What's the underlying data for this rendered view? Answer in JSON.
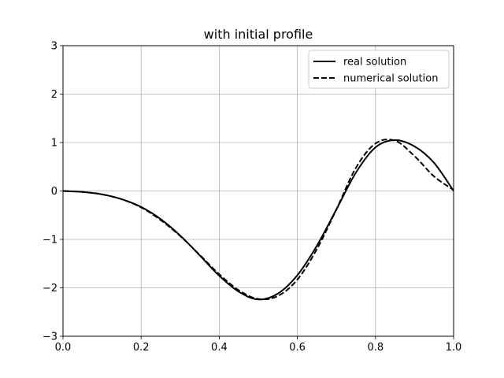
{
  "chart_data": {
    "type": "line",
    "title": "with initial profile",
    "xlabel": "",
    "ylabel": "",
    "xlim": [
      0.0,
      1.0
    ],
    "ylim": [
      -3,
      3
    ],
    "xticks": [
      0.0,
      0.2,
      0.4,
      0.6,
      0.8,
      1.0
    ],
    "xtick_labels": [
      "0.0",
      "0.2",
      "0.4",
      "0.6",
      "0.8",
      "1.0"
    ],
    "yticks": [
      -3,
      -2,
      -1,
      0,
      1,
      2,
      3
    ],
    "ytick_labels": [
      "−3",
      "−2",
      "−1",
      "0",
      "1",
      "2",
      "3"
    ],
    "grid": true,
    "legend_position": "upper right",
    "series": [
      {
        "name": "real solution",
        "style": "solid",
        "color": "#000000",
        "x": [
          0.0,
          0.05,
          0.1,
          0.15,
          0.2,
          0.25,
          0.3,
          0.35,
          0.4,
          0.45,
          0.5,
          0.55,
          0.6,
          0.65,
          0.7,
          0.75,
          0.8,
          0.85,
          0.9,
          0.95,
          1.0
        ],
        "y": [
          0.0,
          -0.02,
          -0.07,
          -0.17,
          -0.33,
          -0.58,
          -0.92,
          -1.33,
          -1.75,
          -2.08,
          -2.24,
          -2.12,
          -1.74,
          -1.13,
          -0.38,
          0.38,
          0.9,
          1.05,
          0.92,
          0.58,
          0.0
        ]
      },
      {
        "name": "numerical solution",
        "style": "dashed",
        "color": "#000000",
        "x": [
          0.0,
          0.05,
          0.1,
          0.15,
          0.2,
          0.25,
          0.3,
          0.35,
          0.4,
          0.45,
          0.5,
          0.55,
          0.6,
          0.65,
          0.7,
          0.75,
          0.8,
          0.85,
          0.9,
          0.95,
          1.0
        ],
        "y": [
          0.0,
          -0.02,
          -0.07,
          -0.17,
          -0.34,
          -0.6,
          -0.93,
          -1.32,
          -1.72,
          -2.05,
          -2.23,
          -2.17,
          -1.83,
          -1.2,
          -0.38,
          0.48,
          0.98,
          1.04,
          0.72,
          0.3,
          0.02
        ]
      }
    ]
  }
}
